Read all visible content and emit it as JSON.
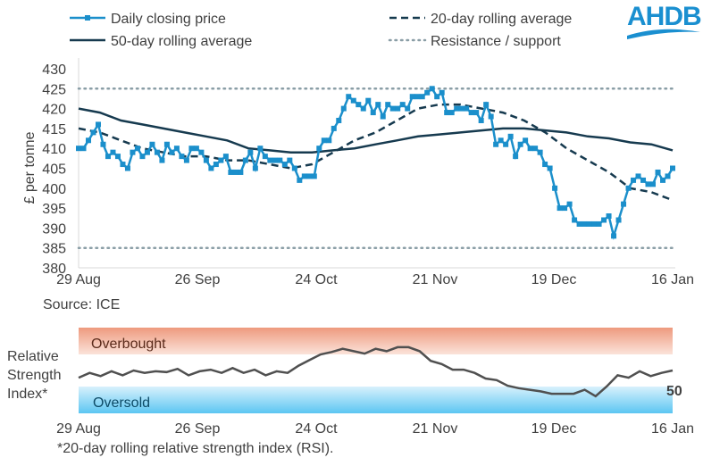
{
  "logo": {
    "text": "AHDB",
    "color": "#1a8fd0"
  },
  "source": "Source: ICE",
  "footnote": "*20-day rolling relative strength index (RSI).",
  "colors": {
    "price": "#1b8fcb",
    "avg": "#163a4f",
    "resistance": "#8a9ea6",
    "overbought": "#ee9a7e",
    "oversold": "#5cc6f2",
    "rsi": "#505050"
  },
  "chart_data": [
    {
      "type": "line",
      "ylabel": "£ per tonne",
      "ylim": [
        380,
        430
      ],
      "yticks": [
        "380",
        "385",
        "390",
        "395",
        "400",
        "405",
        "410",
        "415",
        "420",
        "425",
        "430"
      ],
      "xticks": [
        "29 Aug",
        "26 Sep",
        "24 Oct",
        "21 Nov",
        "19 Dec",
        "16 Jan"
      ],
      "legend": [
        "Daily closing price",
        "20-day rolling average",
        "50-day rolling average",
        "Resistance / support"
      ],
      "legend_placement": "top",
      "series": [
        {
          "name": "Daily closing price",
          "values": [
            410,
            410,
            412,
            414,
            416,
            411,
            408,
            409,
            408,
            406,
            405,
            409,
            410,
            408,
            409,
            411,
            409,
            407,
            411,
            409,
            410,
            408,
            407,
            410,
            410,
            409,
            407,
            405,
            406,
            407,
            408,
            404,
            404,
            404,
            407,
            409,
            405,
            410,
            408,
            407,
            407,
            407,
            406,
            407,
            405,
            402,
            403,
            403,
            403,
            410,
            412,
            412,
            415,
            417,
            420,
            423,
            422,
            421,
            420,
            422,
            419,
            421,
            418,
            421,
            420,
            420,
            421,
            420,
            423,
            423,
            423,
            424,
            425,
            423,
            424,
            419,
            419,
            420,
            420,
            420,
            419,
            419,
            417,
            421,
            418,
            411,
            412,
            411,
            413,
            408,
            411,
            412,
            410,
            410,
            409,
            406,
            405,
            400,
            395,
            395,
            396,
            392,
            391,
            391,
            391,
            391,
            391,
            392,
            393,
            388,
            392,
            396,
            400,
            402,
            403,
            402,
            401,
            401,
            404,
            402,
            403,
            405
          ]
        },
        {
          "name": "20-day rolling average",
          "values": [
            415,
            414,
            412,
            410,
            409,
            408,
            408,
            407,
            407,
            406,
            405,
            406,
            409,
            412,
            414,
            417,
            420,
            421,
            421,
            420,
            419,
            417,
            414,
            410,
            407,
            404,
            400,
            399,
            397
          ]
        },
        {
          "name": "50-day rolling average",
          "values": [
            420,
            419,
            417,
            416,
            415,
            414,
            413,
            412,
            410,
            409.5,
            409,
            409,
            409.5,
            410,
            411,
            412,
            413,
            413.5,
            414,
            414.5,
            415,
            415,
            414.5,
            414,
            413,
            412.5,
            411.5,
            411,
            409.5
          ]
        },
        {
          "name": "Resistance / support",
          "values": [
            425,
            385
          ]
        }
      ]
    },
    {
      "type": "line",
      "ylabel": "Relative Strength Index*",
      "xticks": [
        "29 Aug",
        "26 Sep",
        "24 Oct",
        "21 Nov",
        "19 Dec",
        "16 Jan"
      ],
      "bands": [
        {
          "label": "Overbought",
          "from": 70,
          "to": 100
        },
        {
          "label": "Oversold",
          "from": 0,
          "to": 30
        }
      ],
      "last_value_label": "50",
      "series": [
        {
          "values": [
            41,
            47,
            43,
            49,
            44,
            50,
            47,
            49,
            48,
            52,
            44,
            49,
            51,
            47,
            53,
            47,
            51,
            44,
            49,
            47,
            56,
            63,
            70,
            73,
            77,
            74,
            71,
            77,
            74,
            79,
            79,
            74,
            62,
            58,
            51,
            51,
            47,
            40,
            38,
            31,
            28,
            26,
            24,
            21,
            21,
            21,
            26,
            18,
            30,
            44,
            41,
            49,
            43,
            47,
            50
          ]
        }
      ]
    }
  ]
}
